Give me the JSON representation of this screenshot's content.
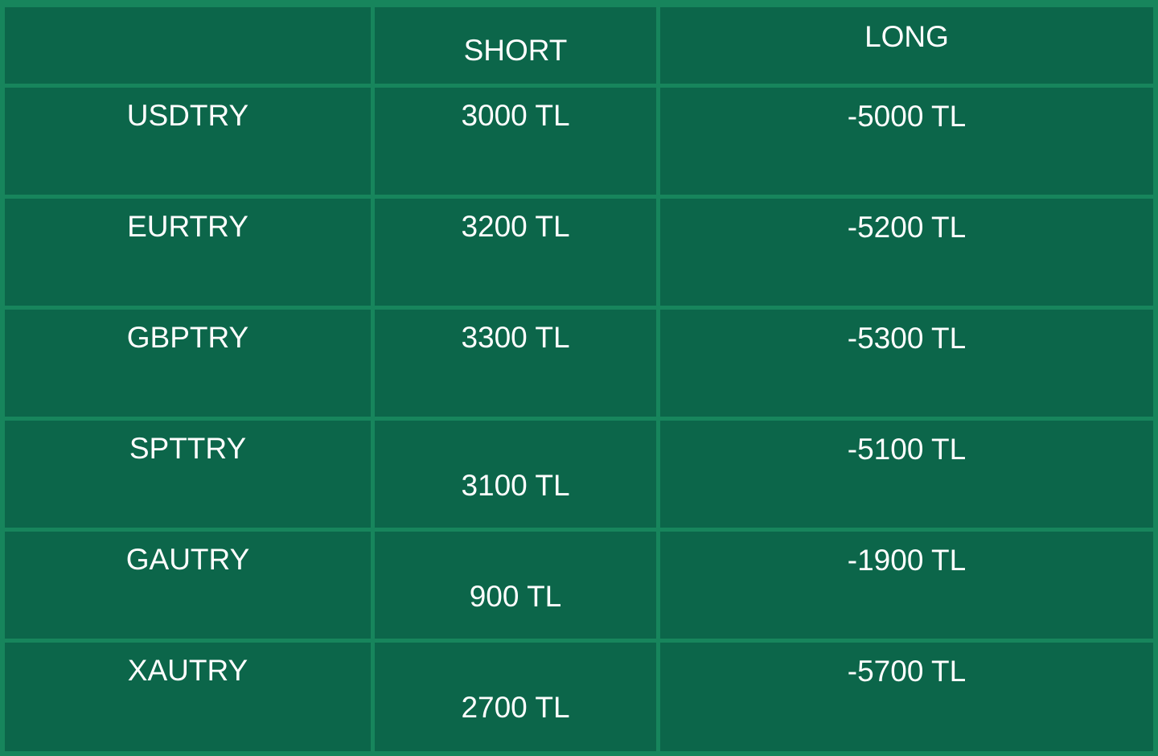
{
  "colors": {
    "cell_bg": "#0C664A",
    "grid": "#17855C",
    "text": "#FFFFFF"
  },
  "header": {
    "blank": "",
    "short": "SHORT",
    "long": "LONG"
  },
  "rows": [
    {
      "pair": "USDTRY",
      "short": "3000 TL",
      "long": "-5000 TL"
    },
    {
      "pair": "EURTRY",
      "short": "3200 TL",
      "long": "-5200 TL"
    },
    {
      "pair": "GBPTRY",
      "short": "3300 TL",
      "long": "-5300 TL"
    },
    {
      "pair": "SPTTRY",
      "short": "3100 TL",
      "long": "-5100 TL"
    },
    {
      "pair": "GAUTRY",
      "short": "900 TL",
      "long": "-1900 TL"
    },
    {
      "pair": "XAUTRY",
      "short": "2700 TL",
      "long": "-5700 TL"
    }
  ],
  "chart_data": {
    "type": "table",
    "columns": [
      "",
      "SHORT",
      "LONG"
    ],
    "rows": [
      [
        "USDTRY",
        "3000 TL",
        "-5000 TL"
      ],
      [
        "EURTRY",
        "3200 TL",
        "-5200 TL"
      ],
      [
        "GBPTRY",
        "3300 TL",
        "-5300 TL"
      ],
      [
        "SPTTRY",
        "3100 TL",
        "-5100 TL"
      ],
      [
        "GAUTRY",
        "900 TL",
        "-1900 TL"
      ],
      [
        "XAUTRY",
        "2700 TL",
        "-5700 TL"
      ]
    ],
    "title": "",
    "legend_position": "none",
    "grid": true
  }
}
